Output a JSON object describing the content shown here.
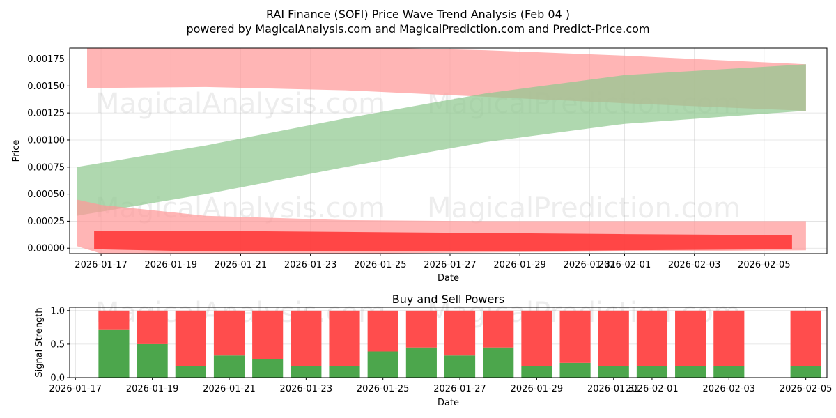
{
  "title": "RAI Finance (SOFI) Price Wave Trend Analysis (Feb 04 )",
  "subtitle": "powered by MagicalAnalysis.com and MagicalPrediction.com and Predict-Price.com",
  "watermarks": [
    "MagicalAnalysis.com",
    "MagicalPrediction.com"
  ],
  "chart_data": [
    {
      "type": "area",
      "xlabel": "Date",
      "ylabel": "Price",
      "ylim": [
        -5e-05,
        0.00185
      ],
      "xlim": [
        "2026-01-16.1",
        "2026-02-05.8"
      ],
      "grid": true,
      "x_ticks": [
        "2026-01-17",
        "2026-01-19",
        "2026-01-21",
        "2026-01-23",
        "2026-01-25",
        "2026-01-27",
        "2026-01-29",
        "2026-01-31",
        "2026-02-01",
        "2026-02-03",
        "2026-02-05"
      ],
      "y_ticks": [
        "0.00000",
        "0.00025",
        "0.00050",
        "0.00075",
        "0.00100",
        "0.00125",
        "0.00150",
        "0.00175"
      ],
      "y_tick_values": [
        0,
        0.00025,
        0.0005,
        0.00075,
        0.001,
        0.00125,
        0.0015,
        0.00175
      ],
      "series": [
        {
          "name": "upper red band",
          "color": "#ff9999",
          "x": [
            16.6,
            20,
            24,
            28,
            32,
            37.2
          ],
          "upper": [
            0.00185,
            0.00188,
            0.00186,
            0.00183,
            0.00178,
            0.0017
          ],
          "lower": [
            0.00148,
            0.00149,
            0.00146,
            0.0014,
            0.00134,
            0.00127
          ]
        },
        {
          "name": "green band",
          "color": "#90c990",
          "x": [
            16.3,
            20,
            24,
            28,
            32,
            37.2
          ],
          "upper": [
            0.00075,
            0.00095,
            0.0012,
            0.00143,
            0.0016,
            0.0017
          ],
          "lower": [
            0.0003,
            0.0005,
            0.00075,
            0.00098,
            0.00115,
            0.00127
          ]
        },
        {
          "name": "lower red band",
          "color": "#ff9999",
          "x": [
            16.3,
            17,
            20,
            24,
            28,
            32,
            37.2
          ],
          "upper": [
            0.00045,
            0.0004,
            0.0003,
            0.00026,
            0.00025,
            0.00025,
            0.00025
          ],
          "lower": [
            2e-05,
            -5e-05,
            -6e-05,
            -5e-05,
            -4e-05,
            -3e-05,
            -2e-05
          ]
        },
        {
          "name": "red price band",
          "color": "#ff3333",
          "x": [
            16.8,
            20,
            24,
            28,
            32,
            36.8
          ],
          "upper": [
            0.00016,
            0.00016,
            0.00015,
            0.00014,
            0.00013,
            0.00012
          ],
          "lower": [
            -1e-05,
            -3e-05,
            -3e-05,
            -3e-05,
            -2e-05,
            -1e-05
          ]
        }
      ]
    },
    {
      "type": "bar",
      "title": "Buy and Sell Powers",
      "xlabel": "Date",
      "ylabel": "Signal Strength",
      "ylim": [
        0,
        1.05
      ],
      "grid": true,
      "x_ticks": [
        "2026-01-17",
        "2026-01-19",
        "2026-01-21",
        "2026-01-23",
        "2026-01-25",
        "2026-01-27",
        "2026-01-29",
        "2026-01-31",
        "2026-02-01",
        "2026-02-03",
        "2026-02-05"
      ],
      "y_ticks": [
        "0.0",
        "0.5",
        "1.0"
      ],
      "y_tick_values": [
        0,
        0.5,
        1.0
      ],
      "categories": [
        "2026-01-18",
        "2026-01-19",
        "2026-01-20",
        "2026-01-21",
        "2026-01-22",
        "2026-01-23",
        "2026-01-24",
        "2026-01-25",
        "2026-01-26",
        "2026-01-27",
        "2026-01-28",
        "2026-01-29",
        "2026-01-30",
        "2026-01-31",
        "2026-02-01",
        "2026-02-02",
        "2026-02-03",
        "2026-02-05"
      ],
      "series": [
        {
          "name": "Buy",
          "color": "#4ca64c",
          "values": [
            0.72,
            0.5,
            0.17,
            0.33,
            0.28,
            0.17,
            0.17,
            0.39,
            0.45,
            0.33,
            0.45,
            0.17,
            0.22,
            0.17,
            0.17,
            0.17,
            0.17,
            0.17
          ]
        },
        {
          "name": "Sell",
          "color": "#ff4d4d",
          "values": [
            0.28,
            0.5,
            0.83,
            0.67,
            0.72,
            0.83,
            0.83,
            0.61,
            0.55,
            0.67,
            0.55,
            0.83,
            0.78,
            0.83,
            0.83,
            0.83,
            0.83,
            0.83
          ]
        }
      ]
    }
  ]
}
